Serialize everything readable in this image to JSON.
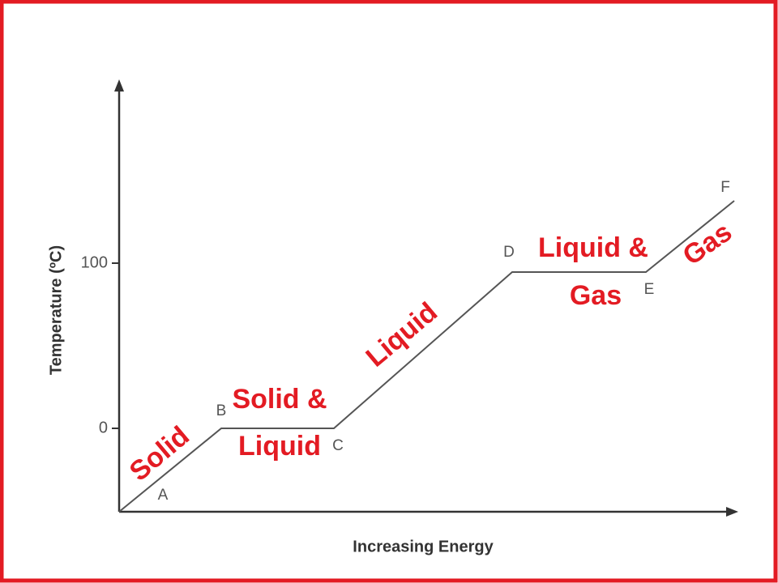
{
  "y_axis": {
    "label": "Temperature (ºC)",
    "ticks": [
      "100",
      "0"
    ]
  },
  "x_axis": {
    "label": "Increasing Energy"
  },
  "points": [
    "A",
    "B",
    "C",
    "D",
    "E",
    "F"
  ],
  "phases": {
    "solid": "Solid",
    "solid_liquid": [
      "Solid &",
      "Liquid"
    ],
    "liquid": "Liquid",
    "liquid_gas": [
      "Liquid &",
      "Gas"
    ],
    "gas": "Gas"
  }
}
